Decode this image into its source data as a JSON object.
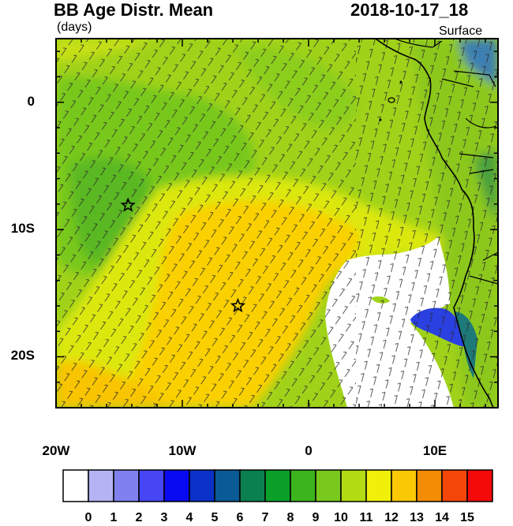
{
  "header": {
    "title": "BB Age Distr. Mean",
    "units": "(days)",
    "datetime": "2018-10-17_18",
    "level": "Surface"
  },
  "axes": {
    "x_ticks": [
      {
        "value": -20,
        "label": "20W"
      },
      {
        "value": -10,
        "label": "10W"
      },
      {
        "value": 0,
        "label": "0"
      },
      {
        "value": 10,
        "label": "10E"
      }
    ],
    "y_ticks": [
      {
        "value": 0,
        "label": "0"
      },
      {
        "value": -10,
        "label": "10S"
      },
      {
        "value": -20,
        "label": "20S"
      }
    ],
    "lon_range": [
      -20,
      15
    ],
    "lat_range": [
      -24,
      5
    ]
  },
  "markers": [
    {
      "name": "star-marker-north",
      "lon": -14.3,
      "lat": -8.1
    },
    {
      "name": "star-marker-south",
      "lon": -5.6,
      "lat": -16.0
    }
  ],
  "colorbar": {
    "labels": [
      "0",
      "1",
      "2",
      "3",
      "4",
      "5",
      "6",
      "7",
      "8",
      "9",
      "10",
      "11",
      "12",
      "13",
      "14",
      "15"
    ],
    "colors": [
      "#ffffff",
      "#b4b4f5",
      "#8080f0",
      "#4646f5",
      "#0a0af0",
      "#0a32c8",
      "#0a5a96",
      "#0a8050",
      "#0aa028",
      "#3cb41e",
      "#78c81e",
      "#b4dc14",
      "#f0f00a",
      "#fac805",
      "#f58c05",
      "#f5460a",
      "#f50a0a"
    ]
  }
}
